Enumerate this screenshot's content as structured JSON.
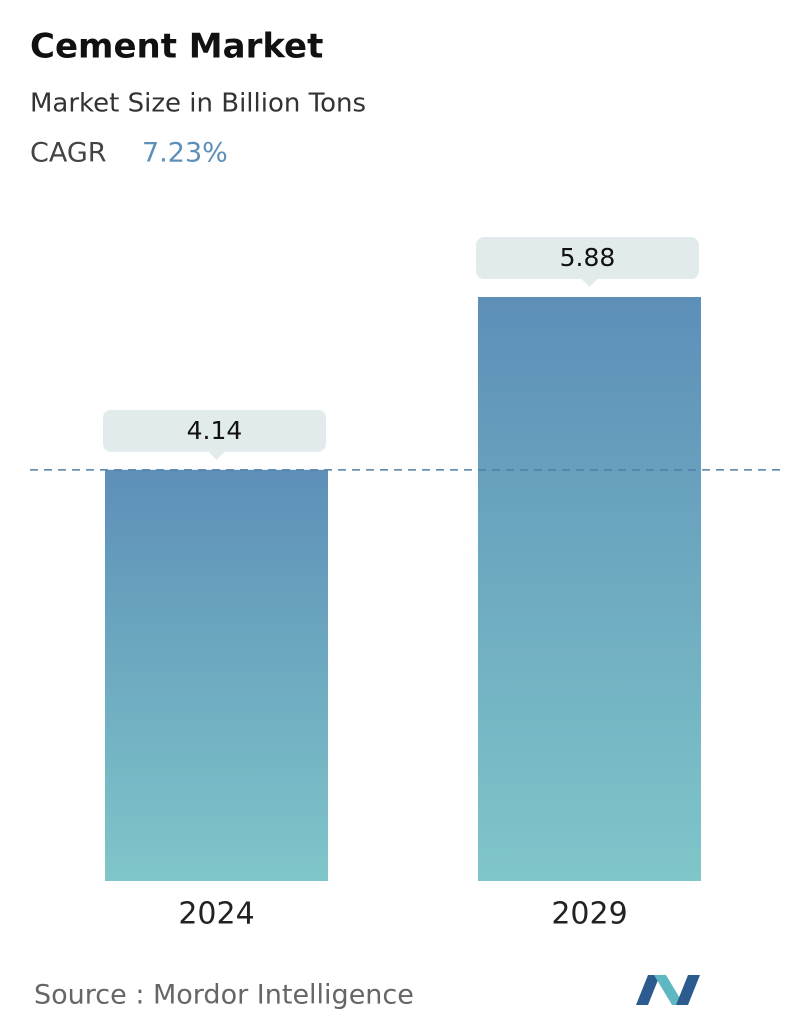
{
  "chart_data": {
    "type": "bar",
    "title": "Cement Market",
    "subtitle": "Market Size in Billion Tons",
    "cagr_label": "CAGR",
    "cagr_value": "7.23%",
    "categories": [
      "2024",
      "2029"
    ],
    "values": [
      4.14,
      5.88
    ],
    "color": [
      "#5d8fb8",
      "#7fc6c9"
    ],
    "reference_line": true,
    "source": "Source :  Mordor Intelligence"
  }
}
